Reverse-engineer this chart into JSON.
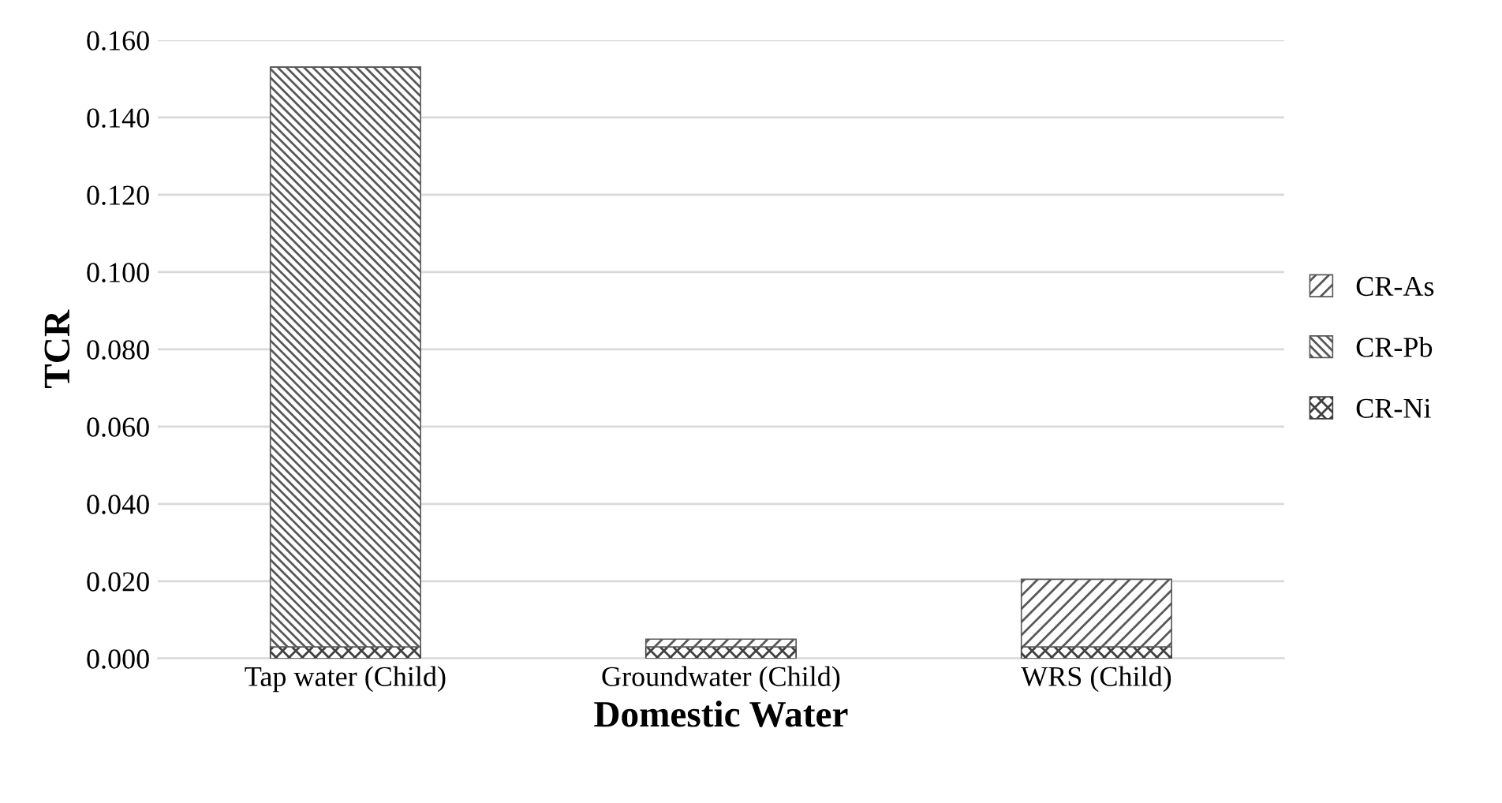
{
  "chart_data": {
    "type": "bar",
    "stacked": true,
    "xlabel": "Domestic Water",
    "ylabel": "TCR",
    "categories": [
      "Tap water (Child)",
      "Groundwater (Child)",
      "WRS (Child)"
    ],
    "series": [
      {
        "name": "CR-Ni",
        "color": "#404040",
        "values": [
          0.003,
          0.003,
          0.003
        ]
      },
      {
        "name": "CR-Pb",
        "color": "#595959",
        "values": [
          0.15,
          0,
          0
        ]
      },
      {
        "name": "CR-As",
        "color": "#595959",
        "values": [
          0,
          0.002,
          0.0175
        ]
      }
    ],
    "ylim": [
      0,
      0.16
    ],
    "yticks": [
      {
        "value": 0,
        "label": "0.000"
      },
      {
        "value": 0.02,
        "label": "0.020"
      },
      {
        "value": 0.04,
        "label": "0.040"
      },
      {
        "value": 0.06,
        "label": "0.060"
      },
      {
        "value": 0.08,
        "label": "0.080"
      },
      {
        "value": 0.1,
        "label": "0.100"
      },
      {
        "value": 0.12,
        "label": "0.120"
      },
      {
        "value": 0.14,
        "label": "0.140"
      },
      {
        "value": 0.16,
        "label": "0.160"
      }
    ],
    "grid": "y",
    "legend": "right"
  }
}
